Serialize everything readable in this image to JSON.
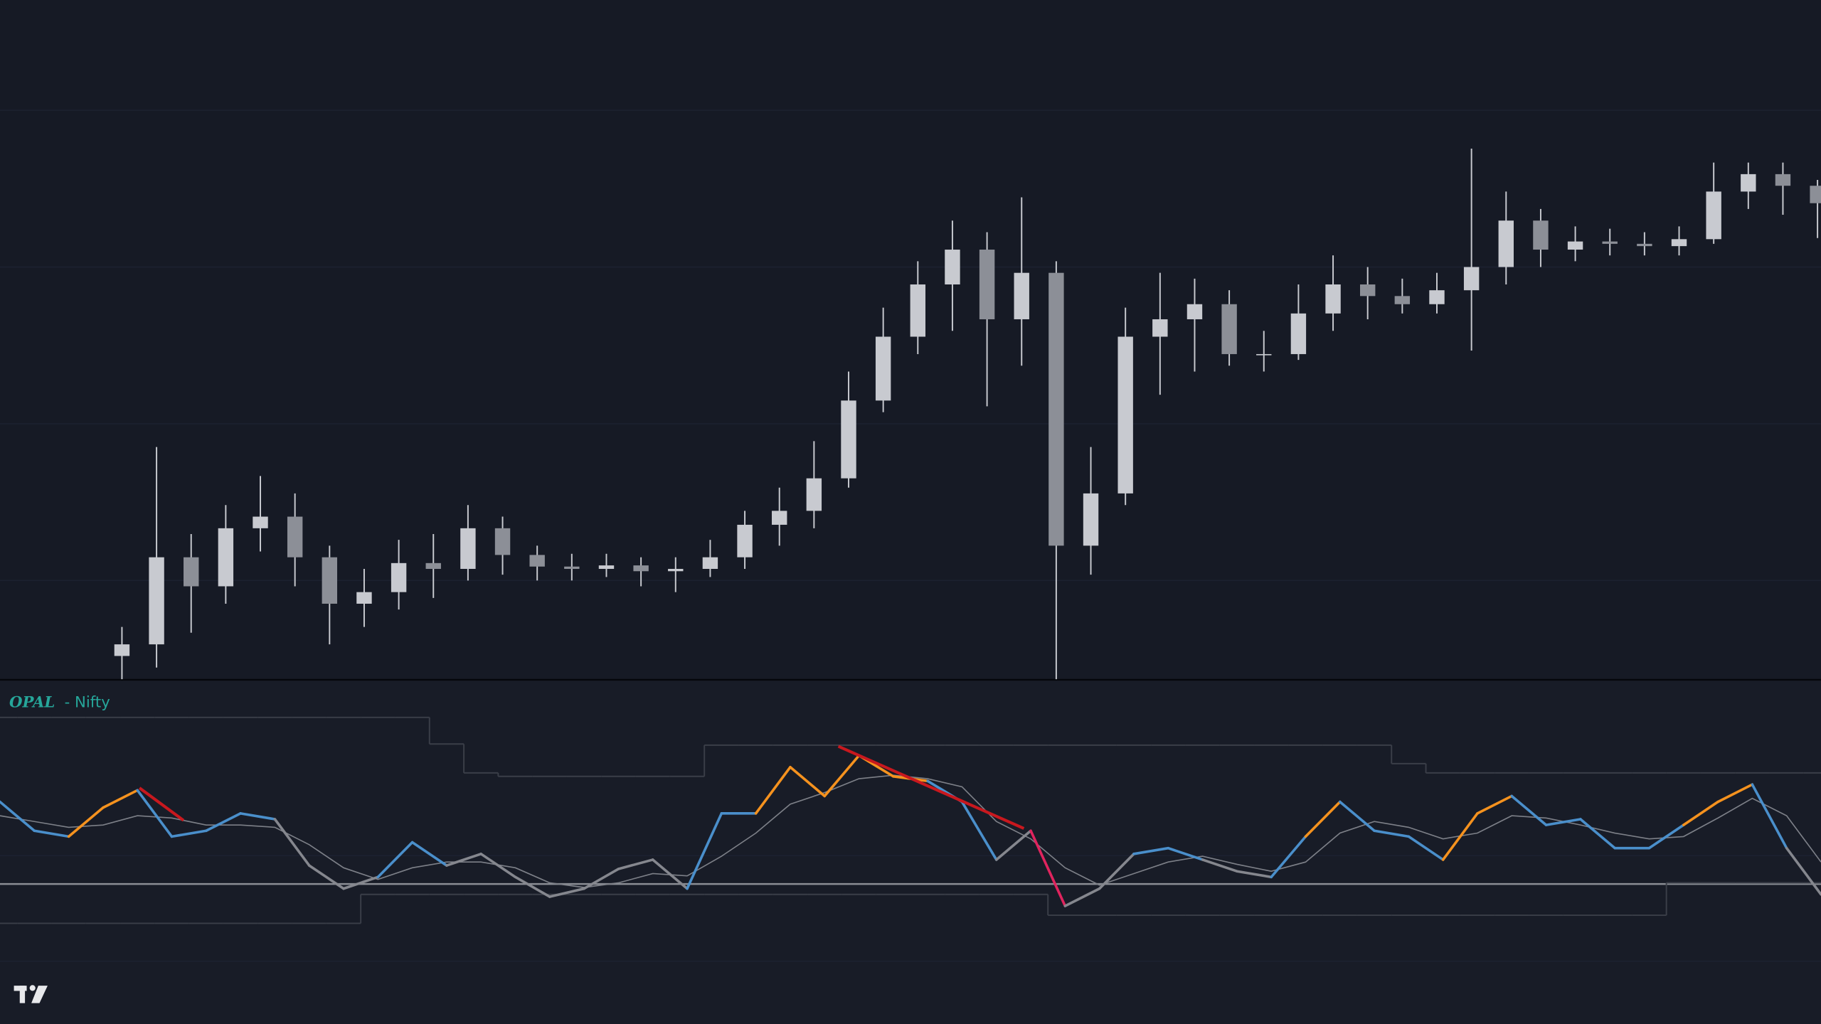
{
  "chart_data": [
    {
      "type": "candlestick",
      "color": "#c8cad0",
      "ylim": [
        0,
        585
      ],
      "open": [
        20,
        30,
        105,
        80,
        130,
        140,
        105,
        65,
        75,
        100,
        95,
        130,
        107,
        97,
        95,
        98,
        93,
        95,
        105,
        133,
        145,
        173,
        240,
        295,
        340,
        370,
        310,
        350,
        115,
        160,
        295,
        310,
        323,
        280,
        280,
        315,
        340,
        330,
        323,
        335,
        355,
        395,
        370,
        377,
        375,
        373,
        379,
        420,
        435,
        425
      ],
      "high": [
        45,
        200,
        125,
        150,
        175,
        160,
        115,
        95,
        120,
        125,
        150,
        140,
        115,
        108,
        108,
        105,
        105,
        120,
        145,
        165,
        205,
        265,
        320,
        360,
        395,
        385,
        415,
        360,
        200,
        320,
        350,
        345,
        335,
        300,
        340,
        365,
        355,
        345,
        350,
        457,
        420,
        405,
        390,
        388,
        385,
        390,
        445,
        445,
        445,
        430
      ],
      "low": [
        0,
        10,
        40,
        65,
        110,
        80,
        30,
        45,
        60,
        70,
        85,
        90,
        85,
        85,
        88,
        80,
        75,
        88,
        95,
        115,
        130,
        165,
        230,
        280,
        300,
        235,
        270,
        0,
        90,
        150,
        245,
        265,
        270,
        265,
        275,
        300,
        310,
        315,
        315,
        283,
        340,
        355,
        360,
        365,
        365,
        365,
        375,
        405,
        400,
        380
      ],
      "close": [
        30,
        105,
        80,
        130,
        140,
        105,
        65,
        75,
        100,
        95,
        130,
        107,
        97,
        95,
        98,
        93,
        95,
        105,
        133,
        145,
        173,
        240,
        295,
        340,
        370,
        310,
        350,
        115,
        160,
        295,
        310,
        323,
        280,
        280,
        315,
        340,
        330,
        323,
        335,
        355,
        395,
        370,
        377,
        375,
        373,
        379,
        420,
        435,
        425,
        410
      ]
    },
    {
      "type": "line",
      "title": "OPAL",
      "subtitle": "- Nifty",
      "ylim": [
        0,
        297
      ],
      "hline": 121,
      "series": [
        {
          "color": "#4a8fcb",
          "values": [
            192,
            167,
            162,
            187,
            202,
            162,
            167,
            182,
            177,
            137,
            117,
            127,
            157,
            137,
            147,
            127,
            110,
            117,
            134,
            142,
            117,
            182,
            182,
            222,
            197,
            232,
            214,
            210,
            192,
            142,
            167,
            102,
            117,
            147,
            152,
            142,
            132,
            127,
            162,
            192,
            167,
            162,
            142,
            182,
            197,
            172,
            177,
            152,
            152,
            172,
            192,
            207,
            152,
            112
          ],
          "point_colors": [
            "#4a8fcb",
            "#4a8fcb",
            "#4a8fcb",
            "#f5921e",
            "#f5921e",
            "#4a8fcb",
            "#4a8fcb",
            "#4a8fcb",
            "#4a8fcb",
            "#85878e",
            "#85878e",
            "#85878e",
            "#4a8fcb",
            "#4a8fcb",
            "#85878e",
            "#85878e",
            "#85878e",
            "#85878e",
            "#85878e",
            "#85878e",
            "#85878e",
            "#4a8fcb",
            "#4a8fcb",
            "#f5921e",
            "#f5921e",
            "#f5921e",
            "#f5921e",
            "#f5921e",
            "#4a8fcb",
            "#4a8fcb",
            "#85878e",
            "#e0245e",
            "#85878e",
            "#85878e",
            "#4a8fcb",
            "#4a8fcb",
            "#85878e",
            "#85878e",
            "#4a8fcb",
            "#f5921e",
            "#4a8fcb",
            "#4a8fcb",
            "#4a8fcb",
            "#f5921e",
            "#f5921e",
            "#4a8fcb",
            "#4a8fcb",
            "#4a8fcb",
            "#4a8fcb",
            "#4a8fcb",
            "#f5921e",
            "#f5921e",
            "#4a8fcb",
            "#85878e"
          ]
        },
        {
          "color": "#7d8088",
          "values": [
            180,
            175,
            170,
            172,
            180,
            178,
            172,
            172,
            170,
            155,
            135,
            125,
            135,
            140,
            140,
            135,
            122,
            118,
            122,
            130,
            128,
            145,
            165,
            190,
            200,
            212,
            215,
            212,
            205,
            175,
            160,
            135,
            120,
            130,
            140,
            145,
            138,
            132,
            140,
            165,
            175,
            170,
            160,
            165,
            180,
            178,
            172,
            165,
            160,
            162,
            178,
            195,
            180,
            140
          ]
        },
        {
          "color": "#3a3e48",
          "values": [
            265,
            265,
            265,
            265,
            265,
            265,
            265,
            265,
            265,
            265,
            265,
            265,
            265,
            242,
            217,
            214,
            214,
            214,
            214,
            214,
            214,
            241,
            241,
            241,
            241,
            241,
            241,
            241,
            241,
            241,
            241,
            241,
            241,
            241,
            241,
            241,
            241,
            241,
            241,
            241,
            241,
            225,
            217,
            217,
            217,
            217,
            217,
            217,
            217,
            217,
            217,
            217,
            217,
            217
          ]
        },
        {
          "color": "#3a3e48",
          "values": [
            87,
            87,
            87,
            87,
            87,
            87,
            87,
            87,
            87,
            87,
            87,
            112,
            112,
            112,
            112,
            112,
            112,
            112,
            112,
            112,
            112,
            112,
            112,
            112,
            112,
            112,
            112,
            112,
            112,
            112,
            112,
            94,
            94,
            94,
            94,
            94,
            94,
            94,
            94,
            94,
            94,
            94,
            94,
            94,
            94,
            94,
            94,
            94,
            94,
            122,
            122,
            122,
            122,
            122
          ]
        }
      ],
      "trend_lines": [
        {
          "color": "#c8181e",
          "x": [
            4.06,
            5.34
          ],
          "values": [
            204,
            176
          ]
        },
        {
          "color": "#c8181e",
          "x": [
            24.4,
            29.8
          ],
          "values": [
            240,
            169
          ]
        }
      ]
    }
  ]
}
